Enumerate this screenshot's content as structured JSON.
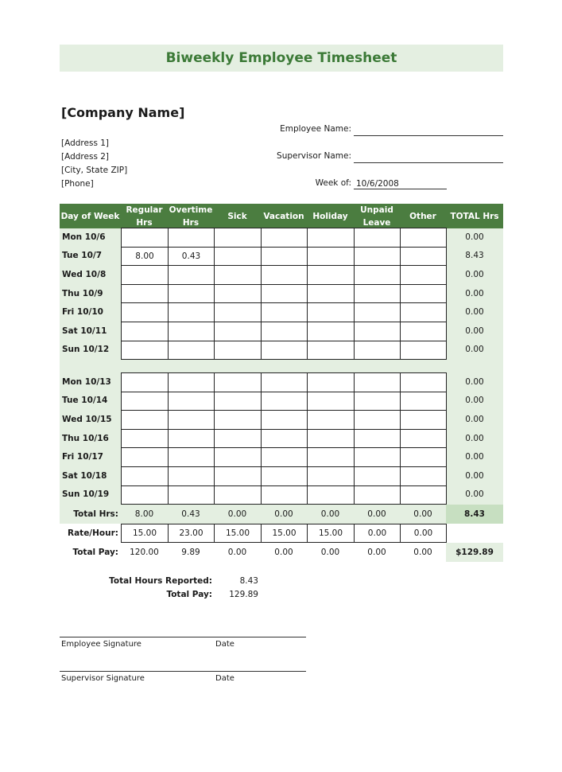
{
  "title": "Biweekly Employee Timesheet",
  "company": {
    "name": "[Company Name]",
    "address_lines": [
      "[Address 1]",
      "[Address 2]",
      "[City, State  ZIP]",
      "[Phone]"
    ]
  },
  "fields": {
    "employee_name_label": "Employee Name:",
    "employee_name_value": "",
    "supervisor_name_label": "Supervisor Name:",
    "supervisor_name_value": "",
    "week_of_label": "Week of:",
    "week_of_value": "10/6/2008"
  },
  "table": {
    "headers": [
      "Day of Week",
      "Regular Hrs",
      "Overtime Hrs",
      "Sick",
      "Vacation",
      "Holiday",
      "Unpaid Leave",
      "Other",
      "TOTAL Hrs"
    ],
    "week1": [
      {
        "day": "Mon 10/6",
        "values": [
          "",
          "",
          "",
          "",
          "",
          "",
          ""
        ],
        "total": "0.00"
      },
      {
        "day": "Tue 10/7",
        "values": [
          "8.00",
          "0.43",
          "",
          "",
          "",
          "",
          ""
        ],
        "total": "8.43"
      },
      {
        "day": "Wed 10/8",
        "values": [
          "",
          "",
          "",
          "",
          "",
          "",
          ""
        ],
        "total": "0.00"
      },
      {
        "day": "Thu 10/9",
        "values": [
          "",
          "",
          "",
          "",
          "",
          "",
          ""
        ],
        "total": "0.00"
      },
      {
        "day": "Fri 10/10",
        "values": [
          "",
          "",
          "",
          "",
          "",
          "",
          ""
        ],
        "total": "0.00"
      },
      {
        "day": "Sat 10/11",
        "values": [
          "",
          "",
          "",
          "",
          "",
          "",
          ""
        ],
        "total": "0.00"
      },
      {
        "day": "Sun 10/12",
        "values": [
          "",
          "",
          "",
          "",
          "",
          "",
          ""
        ],
        "total": "0.00"
      }
    ],
    "week2": [
      {
        "day": "Mon 10/13",
        "values": [
          "",
          "",
          "",
          "",
          "",
          "",
          ""
        ],
        "total": "0.00"
      },
      {
        "day": "Tue 10/14",
        "values": [
          "",
          "",
          "",
          "",
          "",
          "",
          ""
        ],
        "total": "0.00"
      },
      {
        "day": "Wed 10/15",
        "values": [
          "",
          "",
          "",
          "",
          "",
          "",
          ""
        ],
        "total": "0.00"
      },
      {
        "day": "Thu 10/16",
        "values": [
          "",
          "",
          "",
          "",
          "",
          "",
          ""
        ],
        "total": "0.00"
      },
      {
        "day": "Fri 10/17",
        "values": [
          "",
          "",
          "",
          "",
          "",
          "",
          ""
        ],
        "total": "0.00"
      },
      {
        "day": "Sat 10/18",
        "values": [
          "",
          "",
          "",
          "",
          "",
          "",
          ""
        ],
        "total": "0.00"
      },
      {
        "day": "Sun 10/19",
        "values": [
          "",
          "",
          "",
          "",
          "",
          "",
          ""
        ],
        "total": "0.00"
      }
    ],
    "total_hrs": {
      "label": "Total Hrs:",
      "values": [
        "8.00",
        "0.43",
        "0.00",
        "0.00",
        "0.00",
        "0.00",
        "0.00"
      ],
      "total": "8.43"
    },
    "rate_hour": {
      "label": "Rate/Hour:",
      "values": [
        "15.00",
        "23.00",
        "15.00",
        "15.00",
        "15.00",
        "0.00",
        "0.00"
      ]
    },
    "total_pay": {
      "label": "Total Pay:",
      "values": [
        "120.00",
        "9.89",
        "0.00",
        "0.00",
        "0.00",
        "0.00",
        "0.00"
      ],
      "total": "$129.89"
    }
  },
  "summary": {
    "hours_label": "Total Hours Reported:",
    "hours_value": "8.43",
    "pay_label": "Total Pay:",
    "pay_value": "129.89"
  },
  "signatures": {
    "employee": "Employee Signature",
    "supervisor": "Supervisor Signature",
    "date": "Date"
  },
  "colors": {
    "header_green": "#4b7d40",
    "light_green": "#e4efe1",
    "title_green": "#3c7a37",
    "total_green": "#c7dfc1"
  }
}
